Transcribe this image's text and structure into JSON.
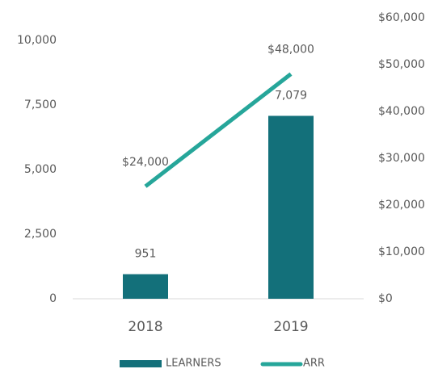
{
  "chart_data": {
    "type": "bar_line",
    "categories": [
      "2018",
      "2019"
    ],
    "series": [
      {
        "name": "LEARNERS",
        "type": "bar",
        "color": "#13707a",
        "values": [
          951,
          7079
        ],
        "value_labels": [
          "951",
          "7,079"
        ]
      },
      {
        "name": "ARR",
        "type": "line",
        "axis": "y2",
        "color": "#26a69a",
        "values": [
          24000,
          48000
        ],
        "value_labels": [
          "$24,000",
          "$48,000"
        ]
      }
    ],
    "ylim": [
      0,
      10000
    ],
    "yticks": [
      0,
      {
        "value": 2500,
        "label": "2,500"
      },
      {
        "value": 5000,
        "label": "5,000"
      },
      {
        "value": 7500,
        "label": "7,500"
      },
      {
        "value": 10000,
        "label": "10,000"
      }
    ],
    "y2lim": [
      0,
      60000
    ],
    "y2ticks": [
      {
        "value": 0,
        "label": "$0"
      },
      {
        "value": 10000,
        "label": "$10,000"
      },
      {
        "value": 20000,
        "label": "$20,000"
      },
      {
        "value": 30000,
        "label": "$30,000"
      },
      {
        "value": 40000,
        "label": "$40,000"
      },
      {
        "value": 50000,
        "label": "$50,000"
      },
      {
        "value": 60000,
        "label": "$60,000"
      }
    ],
    "legend": "bottom"
  }
}
